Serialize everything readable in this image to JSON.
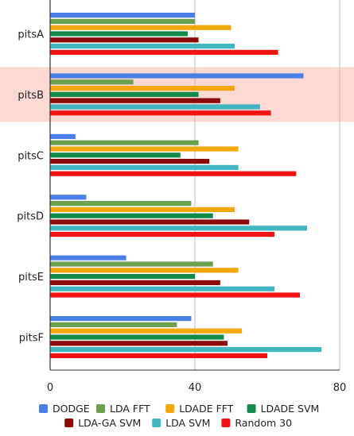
{
  "chart_data": {
    "type": "bar",
    "orientation": "horizontal",
    "title": "",
    "xlabel": "",
    "ylabel": "",
    "xlim": [
      0,
      80
    ],
    "x_ticks": [
      "0",
      "40",
      "80"
    ],
    "grid": "vertical",
    "highlighted_category": "pitsB",
    "highlight_color": "#fdd9d4",
    "legend_position": "bottom",
    "categories": [
      "pitsA",
      "pitsB",
      "pitsC",
      "pitsD",
      "pitsE",
      "pitsF"
    ],
    "series": [
      {
        "name": "DODGE",
        "color": "#4a7fe8",
        "values": [
          40,
          70,
          7,
          10,
          21,
          39
        ]
      },
      {
        "name": "LDA FFT",
        "color": "#6aa14f",
        "values": [
          40,
          23,
          41,
          39,
          45,
          35
        ]
      },
      {
        "name": "LDADE FFT",
        "color": "#f2a80c",
        "values": [
          50,
          51,
          52,
          51,
          52,
          53
        ]
      },
      {
        "name": "LDADE SVM",
        "color": "#138a4a",
        "values": [
          38,
          41,
          36,
          45,
          40,
          48
        ]
      },
      {
        "name": "LDA-GA SVM",
        "color": "#8b0a0a",
        "values": [
          41,
          47,
          44,
          55,
          47,
          49
        ]
      },
      {
        "name": "LDA SVM",
        "color": "#41b6c0",
        "values": [
          51,
          58,
          52,
          71,
          62,
          75
        ]
      },
      {
        "name": "Random 30",
        "color": "#f21313",
        "values": [
          63,
          61,
          68,
          62,
          69,
          60
        ]
      }
    ]
  }
}
